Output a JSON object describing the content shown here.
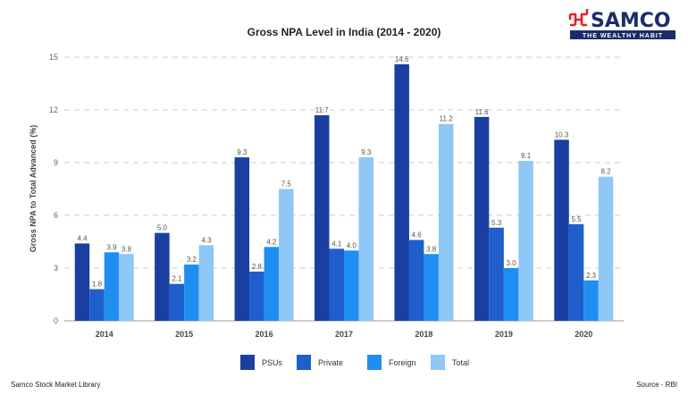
{
  "brand": {
    "name": "SAMCO",
    "tagline": "THE WEALTHY HABIT",
    "accent": "#e4232a",
    "navy": "#1a2c6b"
  },
  "footer": {
    "left": "Samco Stock Market Library",
    "right": "Source - RBI"
  },
  "chart_data": {
    "type": "bar",
    "title": "Gross NPA Level in India (2014 - 2020)",
    "xlabel": "",
    "ylabel": "Gross NPA to Total Advanced (%)",
    "ylim": [
      0,
      15
    ],
    "yticks": [
      0,
      3,
      6,
      9,
      12,
      15
    ],
    "grid": true,
    "legend_position": "bottom",
    "categories": [
      "2014",
      "2015",
      "2016",
      "2017",
      "2018",
      "2019",
      "2020"
    ],
    "series": [
      {
        "name": "PSUs",
        "color": "#1a3fa0",
        "values": [
          4.4,
          5.0,
          9.3,
          11.7,
          14.6,
          11.6,
          10.3
        ]
      },
      {
        "name": "Private",
        "color": "#1f5fcc",
        "values": [
          1.8,
          2.1,
          2.8,
          4.1,
          4.6,
          5.3,
          5.5
        ]
      },
      {
        "name": "Foreign",
        "color": "#1e8ff0",
        "values": [
          3.9,
          3.2,
          4.2,
          4.0,
          3.8,
          3.0,
          2.3
        ]
      },
      {
        "name": "Total",
        "color": "#8fc7f7",
        "values": [
          3.8,
          4.3,
          7.5,
          9.3,
          11.2,
          9.1,
          8.2
        ]
      }
    ]
  }
}
